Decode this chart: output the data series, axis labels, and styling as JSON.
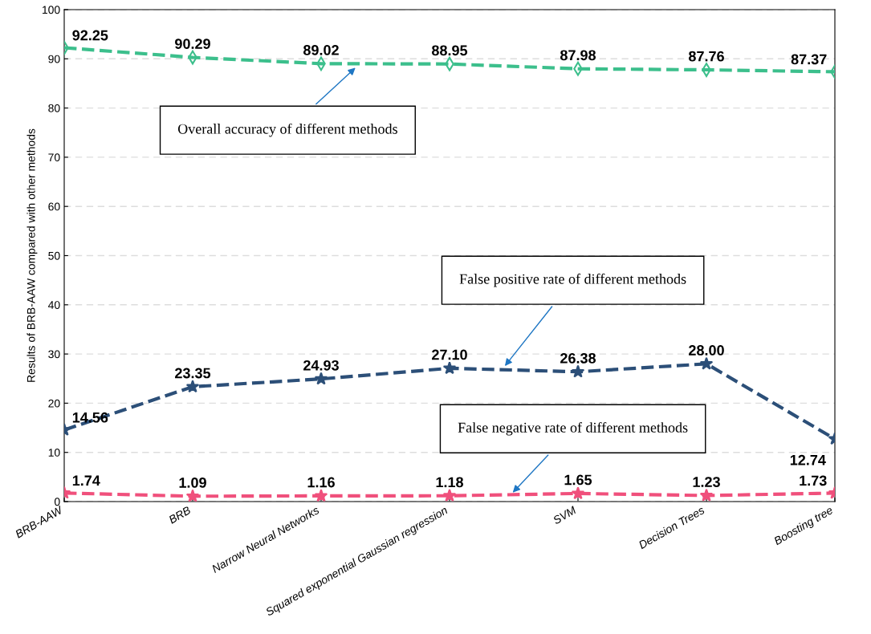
{
  "chart_data": {
    "type": "line",
    "ylabel": "Results of BRB-AAW compared with other methods",
    "categories": [
      "BRB-AAW",
      "BRB",
      "Narrow Neural Networks",
      "Squared exponential Gaussian regression",
      "SVM",
      "Decision Trees",
      "Boosting tree"
    ],
    "series": [
      {
        "color": "#3cbf8c",
        "marker": "diamond",
        "values": [
          92.25,
          90.29,
          89.02,
          88.95,
          87.98,
          87.76,
          87.37
        ],
        "value_labels": [
          "92.25",
          "90.29",
          "89.02",
          "88.95",
          "87.98",
          "87.76",
          "87.37"
        ]
      },
      {
        "color": "#2c4f78",
        "marker": "star",
        "values": [
          14.56,
          23.35,
          24.93,
          27.1,
          26.38,
          28.0,
          12.74
        ],
        "value_labels": [
          "14.56",
          "23.35",
          "24.93",
          "27.10",
          "26.38",
          "28.00",
          "12.74"
        ]
      },
      {
        "color": "#f0507c",
        "marker": "star",
        "values": [
          1.74,
          1.09,
          1.16,
          1.18,
          1.65,
          1.23,
          1.73
        ],
        "value_labels": [
          "1.74",
          "1.09",
          "1.16",
          "1.18",
          "1.65",
          "1.23",
          "1.73"
        ]
      }
    ],
    "ylim": [
      0,
      100
    ],
    "yticks": [
      0,
      10,
      20,
      30,
      40,
      50,
      60,
      70,
      80,
      90,
      100
    ],
    "grid": "y",
    "line_style": "dashed",
    "annotations": [
      "Overall accuracy of different methods",
      "False positive rate of different methods",
      "False negative rate of different methods"
    ]
  }
}
